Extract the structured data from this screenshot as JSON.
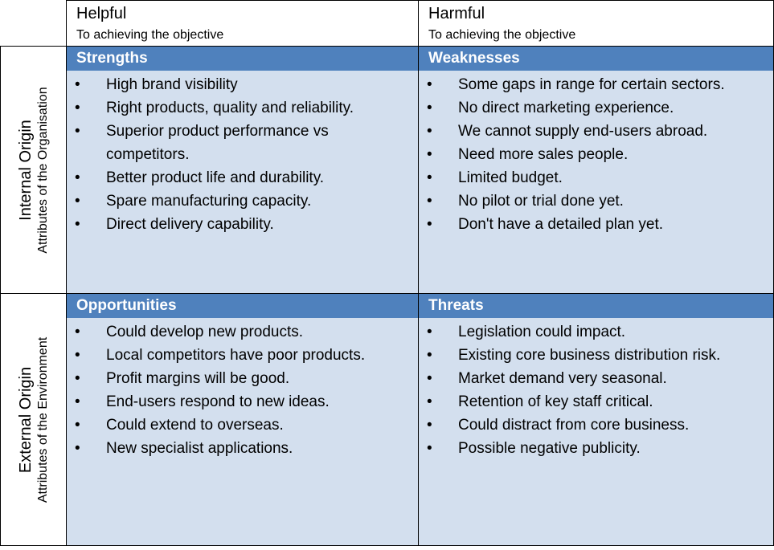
{
  "columns": {
    "helpful": {
      "title": "Helpful",
      "subtitle": "To achieving the objective"
    },
    "harmful": {
      "title": "Harmful",
      "subtitle": "To achieving the objective"
    }
  },
  "rows": {
    "internal": {
      "title": "Internal Origin",
      "subtitle": "Attributes of the Organisation"
    },
    "external": {
      "title": "External Origin",
      "subtitle": "Attributes of the Environment"
    }
  },
  "quadrants": {
    "strengths": {
      "title": "Strengths",
      "items": [
        "High brand visibility",
        "Right products, quality and reliability.",
        "Superior product performance vs competitors.",
        "Better product life and durability.",
        "Spare manufacturing capacity.",
        "Direct delivery capability."
      ]
    },
    "weaknesses": {
      "title": "Weaknesses",
      "items": [
        "Some gaps in range for certain sectors.",
        "No direct marketing experience.",
        "We cannot supply end-users abroad.",
        "Need more sales people.",
        "Limited budget.",
        "No pilot or trial done yet.",
        "Don't have a detailed plan yet."
      ]
    },
    "opportunities": {
      "title": "Opportunities",
      "items": [
        "Could develop new products.",
        "Local competitors have poor products.",
        "Profit margins will be good.",
        "End-users respond to new ideas.",
        "Could extend to overseas.",
        "New specialist applications."
      ]
    },
    "threats": {
      "title": "Threats",
      "items": [
        "Legislation could impact.",
        "Existing core business distribution risk.",
        "Market demand very seasonal.",
        "Retention of key staff critical.",
        "Could distract from core business.",
        "Possible negative publicity."
      ]
    }
  },
  "colors": {
    "header": "#4f81bd",
    "cell": "#d3dfee",
    "border": "#000000"
  }
}
